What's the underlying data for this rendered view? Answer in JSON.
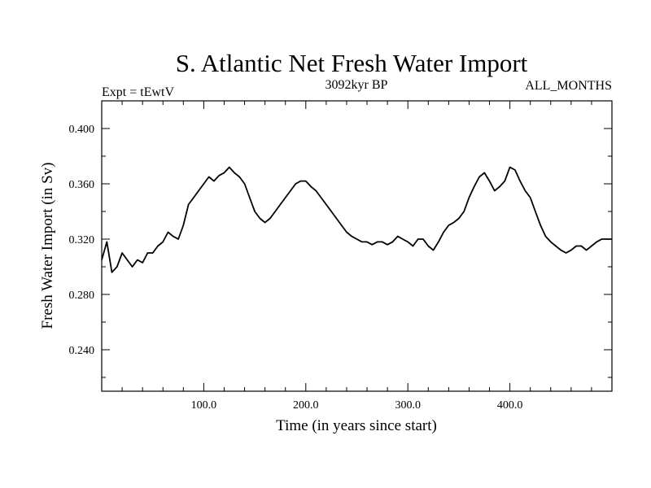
{
  "chart_data": {
    "type": "line",
    "title": "S. Atlantic Net Fresh Water Import",
    "subtitle_left": "Expt = tEwtV",
    "subtitle_center": "3092kyr BP",
    "subtitle_right": "ALL_MONTHS",
    "xlabel": "Time (in years since start)",
    "ylabel": "Fresh Water Import (in Sv)",
    "xlim": [
      0,
      500
    ],
    "ylim": [
      0.21,
      0.42
    ],
    "x_ticks": [
      100,
      200,
      300,
      400
    ],
    "x_tick_labels": [
      "100.0",
      "200.0",
      "300.0",
      "400.0"
    ],
    "y_ticks": [
      0.24,
      0.28,
      0.32,
      0.36,
      0.4
    ],
    "y_tick_labels": [
      "0.240",
      "0.280",
      "0.320",
      "0.360",
      "0.400"
    ],
    "grid": false,
    "series": [
      {
        "name": "Fresh Water Import",
        "x_start": 0,
        "x_step": 5,
        "values": [
          0.305,
          0.318,
          0.296,
          0.3,
          0.31,
          0.305,
          0.3,
          0.305,
          0.303,
          0.31,
          0.31,
          0.315,
          0.318,
          0.325,
          0.322,
          0.32,
          0.33,
          0.345,
          0.35,
          0.355,
          0.36,
          0.365,
          0.362,
          0.366,
          0.368,
          0.372,
          0.368,
          0.365,
          0.36,
          0.35,
          0.34,
          0.335,
          0.332,
          0.335,
          0.34,
          0.345,
          0.35,
          0.355,
          0.36,
          0.362,
          0.362,
          0.358,
          0.355,
          0.35,
          0.345,
          0.34,
          0.335,
          0.33,
          0.325,
          0.322,
          0.32,
          0.318,
          0.318,
          0.316,
          0.318,
          0.318,
          0.316,
          0.318,
          0.322,
          0.32,
          0.318,
          0.315,
          0.32,
          0.32,
          0.315,
          0.312,
          0.318,
          0.325,
          0.33,
          0.332,
          0.335,
          0.34,
          0.35,
          0.358,
          0.365,
          0.368,
          0.362,
          0.355,
          0.358,
          0.362,
          0.372,
          0.37,
          0.362,
          0.355,
          0.35,
          0.34,
          0.33,
          0.322,
          0.318,
          0.315,
          0.312,
          0.31,
          0.312,
          0.315,
          0.315,
          0.312,
          0.315,
          0.318,
          0.32,
          0.32,
          0.32
        ]
      }
    ]
  }
}
